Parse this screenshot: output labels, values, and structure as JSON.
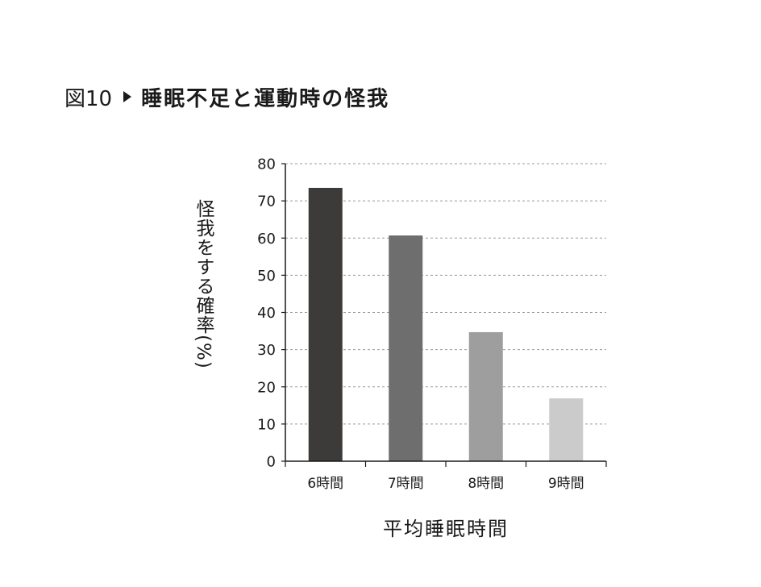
{
  "figure": {
    "number": "図10",
    "title": "睡眠不足と運動時の怪我"
  },
  "chart_data": {
    "type": "bar",
    "categories": [
      "6時間",
      "7時間",
      "8時間",
      "9時間"
    ],
    "values": [
      73.5,
      60.7,
      34.7,
      16.9
    ],
    "xlabel": "平均睡眠時間",
    "ylabel": "怪我をする確率(%)",
    "ylim": [
      0,
      80
    ],
    "yticks": [
      0,
      10,
      20,
      30,
      40,
      50,
      60,
      70,
      80
    ],
    "grid": true,
    "bar_colors": [
      "#3d3a3a",
      "#6e6e6e",
      "#9e9e9e",
      "#cbcbcb"
    ]
  }
}
